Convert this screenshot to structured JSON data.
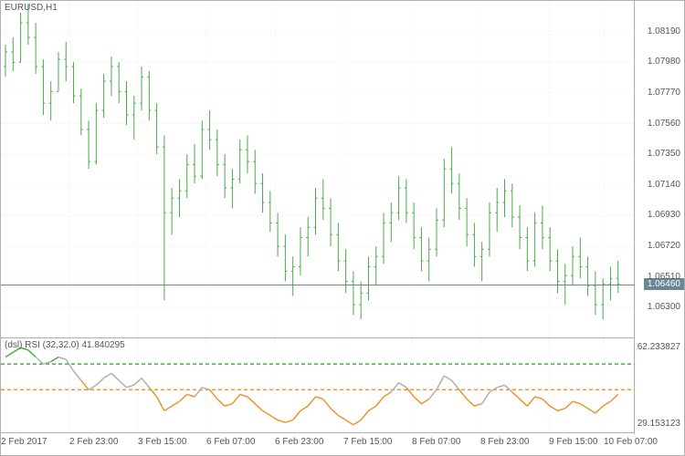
{
  "main_chart": {
    "title": "EURUSD,H1",
    "type": "bar-ohlc",
    "ylim": [
      1.0609,
      1.084
    ],
    "yticks": [
      1.063,
      1.0651,
      1.0672,
      1.0693,
      1.0714,
      1.0735,
      1.0756,
      1.0777,
      1.0798,
      1.0819
    ],
    "bar_color": "#4aaa4a",
    "background_color": "#ffffff",
    "grid_color": "#e8e8e8",
    "current_price": 1.0646,
    "current_price_label": "1.06460",
    "price_line_color": "#6b8696",
    "bars": [
      {
        "x": 0,
        "h": 1.081,
        "l": 1.0788,
        "o": 1.0795,
        "c": 1.0805
      },
      {
        "x": 1,
        "h": 1.0815,
        "l": 1.0792,
        "o": 1.0805,
        "c": 1.0798
      },
      {
        "x": 2,
        "h": 1.0832,
        "l": 1.0798,
        "o": 1.0798,
        "c": 1.0825
      },
      {
        "x": 3,
        "h": 1.0838,
        "l": 1.081,
        "o": 1.0825,
        "c": 1.0815
      },
      {
        "x": 4,
        "h": 1.0825,
        "l": 1.079,
        "o": 1.0815,
        "c": 1.0795
      },
      {
        "x": 5,
        "h": 1.08,
        "l": 1.0762,
        "o": 1.0795,
        "c": 1.077
      },
      {
        "x": 6,
        "h": 1.0785,
        "l": 1.0758,
        "o": 1.077,
        "c": 1.0778
      },
      {
        "x": 7,
        "h": 1.0805,
        "l": 1.0778,
        "o": 1.0778,
        "c": 1.08
      },
      {
        "x": 8,
        "h": 1.0812,
        "l": 1.0785,
        "o": 1.08,
        "c": 1.0795
      },
      {
        "x": 9,
        "h": 1.0798,
        "l": 1.077,
        "o": 1.0795,
        "c": 1.0775
      },
      {
        "x": 10,
        "h": 1.078,
        "l": 1.0748,
        "o": 1.0775,
        "c": 1.0752
      },
      {
        "x": 11,
        "h": 1.0758,
        "l": 1.0725,
        "o": 1.0752,
        "c": 1.073
      },
      {
        "x": 12,
        "h": 1.077,
        "l": 1.0728,
        "o": 1.073,
        "c": 1.0765
      },
      {
        "x": 13,
        "h": 1.079,
        "l": 1.076,
        "o": 1.0765,
        "c": 1.0785
      },
      {
        "x": 14,
        "h": 1.0802,
        "l": 1.0775,
        "o": 1.0785,
        "c": 1.0795
      },
      {
        "x": 15,
        "h": 1.0798,
        "l": 1.077,
        "o": 1.0795,
        "c": 1.0778
      },
      {
        "x": 16,
        "h": 1.0785,
        "l": 1.0755,
        "o": 1.0778,
        "c": 1.0762
      },
      {
        "x": 17,
        "h": 1.0775,
        "l": 1.0745,
        "o": 1.0762,
        "c": 1.077
      },
      {
        "x": 18,
        "h": 1.0795,
        "l": 1.0765,
        "o": 1.077,
        "c": 1.0788
      },
      {
        "x": 19,
        "h": 1.0792,
        "l": 1.0758,
        "o": 1.0788,
        "c": 1.0765
      },
      {
        "x": 20,
        "h": 1.077,
        "l": 1.0735,
        "o": 1.0765,
        "c": 1.074
      },
      {
        "x": 21,
        "h": 1.0748,
        "l": 1.0635,
        "o": 1.074,
        "c": 1.0695
      },
      {
        "x": 22,
        "h": 1.0712,
        "l": 1.068,
        "o": 1.0695,
        "c": 1.0705
      },
      {
        "x": 23,
        "h": 1.0718,
        "l": 1.0692,
        "o": 1.0705,
        "c": 1.071
      },
      {
        "x": 24,
        "h": 1.0735,
        "l": 1.0705,
        "o": 1.071,
        "c": 1.0728
      },
      {
        "x": 25,
        "h": 1.0742,
        "l": 1.0715,
        "o": 1.0728,
        "c": 1.072
      },
      {
        "x": 26,
        "h": 1.0758,
        "l": 1.0718,
        "o": 1.072,
        "c": 1.0752
      },
      {
        "x": 27,
        "h": 1.0765,
        "l": 1.0738,
        "o": 1.0752,
        "c": 1.0745
      },
      {
        "x": 28,
        "h": 1.0752,
        "l": 1.072,
        "o": 1.0745,
        "c": 1.0728
      },
      {
        "x": 29,
        "h": 1.0735,
        "l": 1.0705,
        "o": 1.0728,
        "c": 1.0712
      },
      {
        "x": 30,
        "h": 1.0725,
        "l": 1.0698,
        "o": 1.0712,
        "c": 1.0718
      },
      {
        "x": 31,
        "h": 1.0745,
        "l": 1.0715,
        "o": 1.0718,
        "c": 1.0738
      },
      {
        "x": 32,
        "h": 1.0748,
        "l": 1.0722,
        "o": 1.0738,
        "c": 1.073
      },
      {
        "x": 33,
        "h": 1.0738,
        "l": 1.0708,
        "o": 1.073,
        "c": 1.0715
      },
      {
        "x": 34,
        "h": 1.0722,
        "l": 1.0695,
        "o": 1.0715,
        "c": 1.0702
      },
      {
        "x": 35,
        "h": 1.071,
        "l": 1.0682,
        "o": 1.0702,
        "c": 1.0688
      },
      {
        "x": 36,
        "h": 1.0695,
        "l": 1.0665,
        "o": 1.0688,
        "c": 1.0672
      },
      {
        "x": 37,
        "h": 1.068,
        "l": 1.0648,
        "o": 1.0672,
        "c": 1.0655
      },
      {
        "x": 38,
        "h": 1.0665,
        "l": 1.0638,
        "o": 1.0655,
        "c": 1.0658
      },
      {
        "x": 39,
        "h": 1.0685,
        "l": 1.0652,
        "o": 1.0658,
        "c": 1.0678
      },
      {
        "x": 40,
        "h": 1.0692,
        "l": 1.0665,
        "o": 1.0678,
        "c": 1.0685
      },
      {
        "x": 41,
        "h": 1.0712,
        "l": 1.068,
        "o": 1.0685,
        "c": 1.0705
      },
      {
        "x": 42,
        "h": 1.0718,
        "l": 1.069,
        "o": 1.0705,
        "c": 1.0698
      },
      {
        "x": 43,
        "h": 1.0705,
        "l": 1.0672,
        "o": 1.0698,
        "c": 1.068
      },
      {
        "x": 44,
        "h": 1.0688,
        "l": 1.0655,
        "o": 1.068,
        "c": 1.0662
      },
      {
        "x": 45,
        "h": 1.067,
        "l": 1.064,
        "o": 1.0662,
        "c": 1.0648
      },
      {
        "x": 46,
        "h": 1.0655,
        "l": 1.0625,
        "o": 1.0648,
        "c": 1.0632
      },
      {
        "x": 47,
        "h": 1.0648,
        "l": 1.0622,
        "o": 1.0632,
        "c": 1.064
      },
      {
        "x": 48,
        "h": 1.0665,
        "l": 1.0635,
        "o": 1.064,
        "c": 1.0658
      },
      {
        "x": 49,
        "h": 1.0672,
        "l": 1.0645,
        "o": 1.0658,
        "c": 1.0665
      },
      {
        "x": 50,
        "h": 1.0695,
        "l": 1.066,
        "o": 1.0665,
        "c": 1.0688
      },
      {
        "x": 51,
        "h": 1.0702,
        "l": 1.0675,
        "o": 1.0688,
        "c": 1.0695
      },
      {
        "x": 52,
        "h": 1.072,
        "l": 1.069,
        "o": 1.0695,
        "c": 1.0712
      },
      {
        "x": 53,
        "h": 1.0718,
        "l": 1.0688,
        "o": 1.0712,
        "c": 1.0695
      },
      {
        "x": 54,
        "h": 1.0702,
        "l": 1.067,
        "o": 1.0695,
        "c": 1.0678
      },
      {
        "x": 55,
        "h": 1.0685,
        "l": 1.0655,
        "o": 1.0678,
        "c": 1.0662
      },
      {
        "x": 56,
        "h": 1.0678,
        "l": 1.0648,
        "o": 1.0662,
        "c": 1.067
      },
      {
        "x": 57,
        "h": 1.0698,
        "l": 1.0665,
        "o": 1.067,
        "c": 1.069
      },
      {
        "x": 58,
        "h": 1.0732,
        "l": 1.0685,
        "o": 1.069,
        "c": 1.0725
      },
      {
        "x": 59,
        "h": 1.074,
        "l": 1.0708,
        "o": 1.0725,
        "c": 1.0715
      },
      {
        "x": 60,
        "h": 1.0722,
        "l": 1.069,
        "o": 1.0715,
        "c": 1.0698
      },
      {
        "x": 61,
        "h": 1.0705,
        "l": 1.0672,
        "o": 1.0698,
        "c": 1.068
      },
      {
        "x": 62,
        "h": 1.0688,
        "l": 1.0658,
        "o": 1.068,
        "c": 1.0665
      },
      {
        "x": 63,
        "h": 1.0675,
        "l": 1.0648,
        "o": 1.0665,
        "c": 1.067
      },
      {
        "x": 64,
        "h": 1.0702,
        "l": 1.0665,
        "o": 1.067,
        "c": 1.0695
      },
      {
        "x": 65,
        "h": 1.0712,
        "l": 1.0682,
        "o": 1.0695,
        "c": 1.0702
      },
      {
        "x": 66,
        "h": 1.0718,
        "l": 1.0692,
        "o": 1.0702,
        "c": 1.071
      },
      {
        "x": 67,
        "h": 1.0715,
        "l": 1.0685,
        "o": 1.071,
        "c": 1.0692
      },
      {
        "x": 68,
        "h": 1.07,
        "l": 1.067,
        "o": 1.0692,
        "c": 1.0678
      },
      {
        "x": 69,
        "h": 1.0685,
        "l": 1.0655,
        "o": 1.0678,
        "c": 1.0662
      },
      {
        "x": 70,
        "h": 1.0695,
        "l": 1.0658,
        "o": 1.0662,
        "c": 1.0688
      },
      {
        "x": 71,
        "h": 1.07,
        "l": 1.067,
        "o": 1.0688,
        "c": 1.0678
      },
      {
        "x": 72,
        "h": 1.0685,
        "l": 1.0655,
        "o": 1.0678,
        "c": 1.0662
      },
      {
        "x": 73,
        "h": 1.067,
        "l": 1.064,
        "o": 1.0662,
        "c": 1.0648
      },
      {
        "x": 74,
        "h": 1.066,
        "l": 1.0632,
        "o": 1.0648,
        "c": 1.0652
      },
      {
        "x": 75,
        "h": 1.0672,
        "l": 1.0645,
        "o": 1.0652,
        "c": 1.0665
      },
      {
        "x": 76,
        "h": 1.0678,
        "l": 1.065,
        "o": 1.0665,
        "c": 1.0658
      },
      {
        "x": 77,
        "h": 1.0665,
        "l": 1.0638,
        "o": 1.0658,
        "c": 1.0645
      },
      {
        "x": 78,
        "h": 1.0655,
        "l": 1.0625,
        "o": 1.0645,
        "c": 1.0632
      },
      {
        "x": 79,
        "h": 1.065,
        "l": 1.0622,
        "o": 1.0632,
        "c": 1.0646
      },
      {
        "x": 80,
        "h": 1.0658,
        "l": 1.0635,
        "o": 1.0646,
        "c": 1.065
      },
      {
        "x": 81,
        "h": 1.0662,
        "l": 1.064,
        "o": 1.065,
        "c": 1.0646
      }
    ]
  },
  "indicator": {
    "label": "(dsl) RSI (32,32.0) 41.840295",
    "type": "line",
    "ylim": [
      25,
      66
    ],
    "yticks": [
      29.153123,
      62.233827
    ],
    "ytick_labels": [
      "29.153123",
      "62.233827"
    ],
    "upper_line_color": "#4aaa4a",
    "lower_line_color": "#e8962e",
    "rsi_neutral_color": "#b0b0b0",
    "rsi_signal_color": "#e8962e",
    "upper_level": 55,
    "lower_level": 44,
    "points": [
      {
        "x": 0,
        "v": 58,
        "c": "g"
      },
      {
        "x": 1,
        "v": 60,
        "c": "g"
      },
      {
        "x": 2,
        "v": 62,
        "c": "g"
      },
      {
        "x": 3,
        "v": 61,
        "c": "g"
      },
      {
        "x": 4,
        "v": 58,
        "c": "g"
      },
      {
        "x": 5,
        "v": 55,
        "c": "n"
      },
      {
        "x": 6,
        "v": 56,
        "c": "n"
      },
      {
        "x": 7,
        "v": 58,
        "c": "g"
      },
      {
        "x": 8,
        "v": 57,
        "c": "n"
      },
      {
        "x": 9,
        "v": 52,
        "c": "n"
      },
      {
        "x": 10,
        "v": 48,
        "c": "n"
      },
      {
        "x": 11,
        "v": 44,
        "c": "o"
      },
      {
        "x": 12,
        "v": 46,
        "c": "n"
      },
      {
        "x": 13,
        "v": 49,
        "c": "n"
      },
      {
        "x": 14,
        "v": 51,
        "c": "n"
      },
      {
        "x": 15,
        "v": 48,
        "c": "n"
      },
      {
        "x": 16,
        "v": 45,
        "c": "n"
      },
      {
        "x": 17,
        "v": 46,
        "c": "n"
      },
      {
        "x": 18,
        "v": 49,
        "c": "n"
      },
      {
        "x": 19,
        "v": 45,
        "c": "n"
      },
      {
        "x": 20,
        "v": 41,
        "c": "o"
      },
      {
        "x": 21,
        "v": 35,
        "c": "o"
      },
      {
        "x": 22,
        "v": 37,
        "c": "o"
      },
      {
        "x": 23,
        "v": 39,
        "c": "o"
      },
      {
        "x": 24,
        "v": 42,
        "c": "o"
      },
      {
        "x": 25,
        "v": 41,
        "c": "o"
      },
      {
        "x": 26,
        "v": 45,
        "c": "n"
      },
      {
        "x": 27,
        "v": 44,
        "c": "n"
      },
      {
        "x": 28,
        "v": 40,
        "c": "o"
      },
      {
        "x": 29,
        "v": 37,
        "c": "o"
      },
      {
        "x": 30,
        "v": 38,
        "c": "o"
      },
      {
        "x": 31,
        "v": 42,
        "c": "o"
      },
      {
        "x": 32,
        "v": 41,
        "c": "o"
      },
      {
        "x": 33,
        "v": 38,
        "c": "o"
      },
      {
        "x": 34,
        "v": 35,
        "c": "o"
      },
      {
        "x": 35,
        "v": 33,
        "c": "o"
      },
      {
        "x": 36,
        "v": 31,
        "c": "o"
      },
      {
        "x": 37,
        "v": 30,
        "c": "o"
      },
      {
        "x": 38,
        "v": 31,
        "c": "o"
      },
      {
        "x": 39,
        "v": 35,
        "c": "o"
      },
      {
        "x": 40,
        "v": 37,
        "c": "o"
      },
      {
        "x": 41,
        "v": 41,
        "c": "o"
      },
      {
        "x": 42,
        "v": 40,
        "c": "o"
      },
      {
        "x": 43,
        "v": 36,
        "c": "o"
      },
      {
        "x": 44,
        "v": 33,
        "c": "o"
      },
      {
        "x": 45,
        "v": 31,
        "c": "o"
      },
      {
        "x": 46,
        "v": 29,
        "c": "o"
      },
      {
        "x": 47,
        "v": 31,
        "c": "o"
      },
      {
        "x": 48,
        "v": 35,
        "c": "o"
      },
      {
        "x": 49,
        "v": 37,
        "c": "o"
      },
      {
        "x": 50,
        "v": 41,
        "c": "o"
      },
      {
        "x": 51,
        "v": 43,
        "c": "o"
      },
      {
        "x": 52,
        "v": 47,
        "c": "n"
      },
      {
        "x": 53,
        "v": 45,
        "c": "n"
      },
      {
        "x": 54,
        "v": 41,
        "c": "o"
      },
      {
        "x": 55,
        "v": 38,
        "c": "o"
      },
      {
        "x": 56,
        "v": 40,
        "c": "o"
      },
      {
        "x": 57,
        "v": 44,
        "c": "n"
      },
      {
        "x": 58,
        "v": 50,
        "c": "n"
      },
      {
        "x": 59,
        "v": 48,
        "c": "n"
      },
      {
        "x": 60,
        "v": 44,
        "c": "n"
      },
      {
        "x": 61,
        "v": 40,
        "c": "o"
      },
      {
        "x": 62,
        "v": 37,
        "c": "o"
      },
      {
        "x": 63,
        "v": 38,
        "c": "o"
      },
      {
        "x": 64,
        "v": 43,
        "c": "n"
      },
      {
        "x": 65,
        "v": 45,
        "c": "n"
      },
      {
        "x": 66,
        "v": 46,
        "c": "n"
      },
      {
        "x": 67,
        "v": 43,
        "c": "n"
      },
      {
        "x": 68,
        "v": 40,
        "c": "o"
      },
      {
        "x": 69,
        "v": 37,
        "c": "o"
      },
      {
        "x": 70,
        "v": 41,
        "c": "o"
      },
      {
        "x": 71,
        "v": 40,
        "c": "o"
      },
      {
        "x": 72,
        "v": 37,
        "c": "o"
      },
      {
        "x": 73,
        "v": 35,
        "c": "o"
      },
      {
        "x": 74,
        "v": 36,
        "c": "o"
      },
      {
        "x": 75,
        "v": 39,
        "c": "o"
      },
      {
        "x": 76,
        "v": 38,
        "c": "o"
      },
      {
        "x": 77,
        "v": 36,
        "c": "o"
      },
      {
        "x": 78,
        "v": 34,
        "c": "o"
      },
      {
        "x": 79,
        "v": 37,
        "c": "o"
      },
      {
        "x": 80,
        "v": 39,
        "c": "o"
      },
      {
        "x": 81,
        "v": 42,
        "c": "o"
      }
    ]
  },
  "x_axis": {
    "labels": [
      "2 Feb 2017",
      "2 Feb 23:00",
      "3 Feb 15:00",
      "6 Feb 07:00",
      "6 Feb 23:00",
      "7 Feb 15:00",
      "8 Feb 07:00",
      "8 Feb 23:00",
      "9 Feb 15:00",
      "10 Feb 07:00"
    ],
    "positions": [
      0,
      75,
      150,
      225,
      300,
      375,
      450,
      525,
      600,
      660
    ]
  },
  "dimensions": {
    "main_width": 694,
    "main_height": 370,
    "ind_height": 105,
    "bar_count": 82
  }
}
